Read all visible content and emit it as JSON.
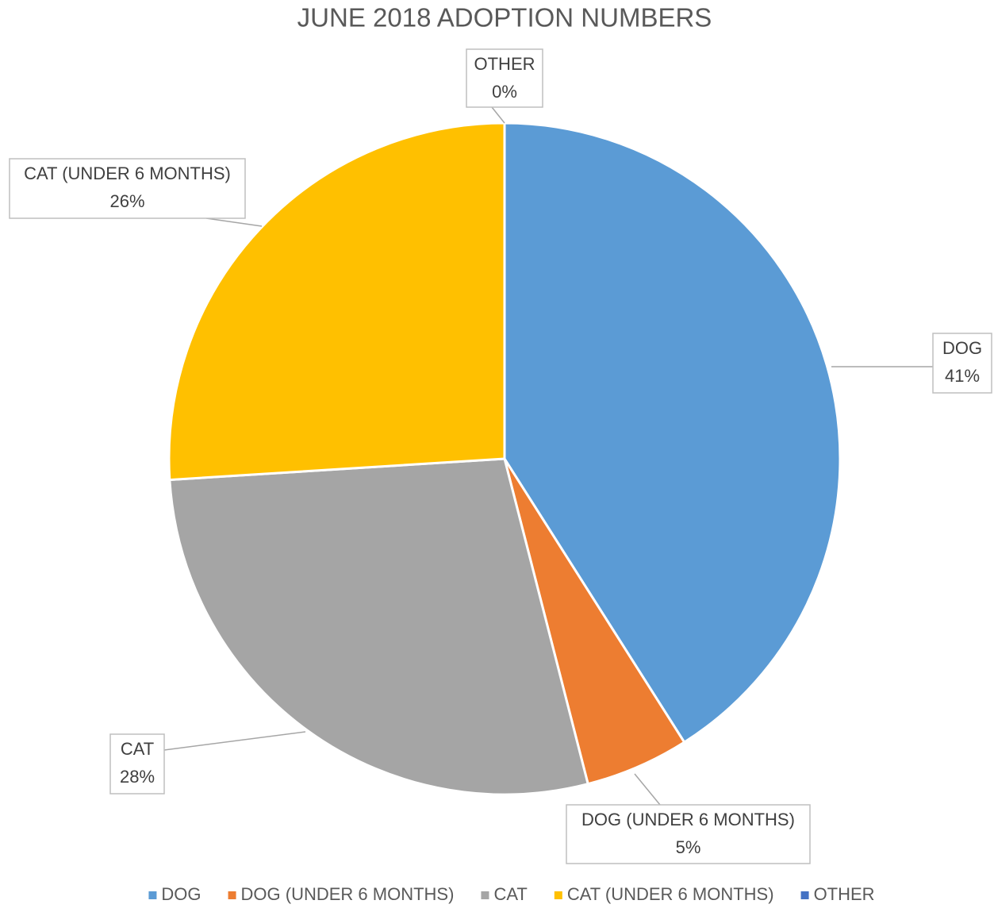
{
  "chart_data": {
    "type": "pie",
    "title": "JUNE 2018 ADOPTION NUMBERS",
    "categories": [
      "DOG",
      "DOG (UNDER 6 MONTHS)",
      "CAT",
      "CAT (UNDER 6 MONTHS)",
      "OTHER"
    ],
    "values": [
      41,
      5,
      28,
      26,
      0
    ],
    "value_labels": [
      "41%",
      "5%",
      "28%",
      "26%",
      "0%"
    ],
    "colors": [
      "#5b9bd5",
      "#ed7d31",
      "#a5a5a5",
      "#ffc000",
      "#4472c4"
    ],
    "legend": "bottom"
  }
}
